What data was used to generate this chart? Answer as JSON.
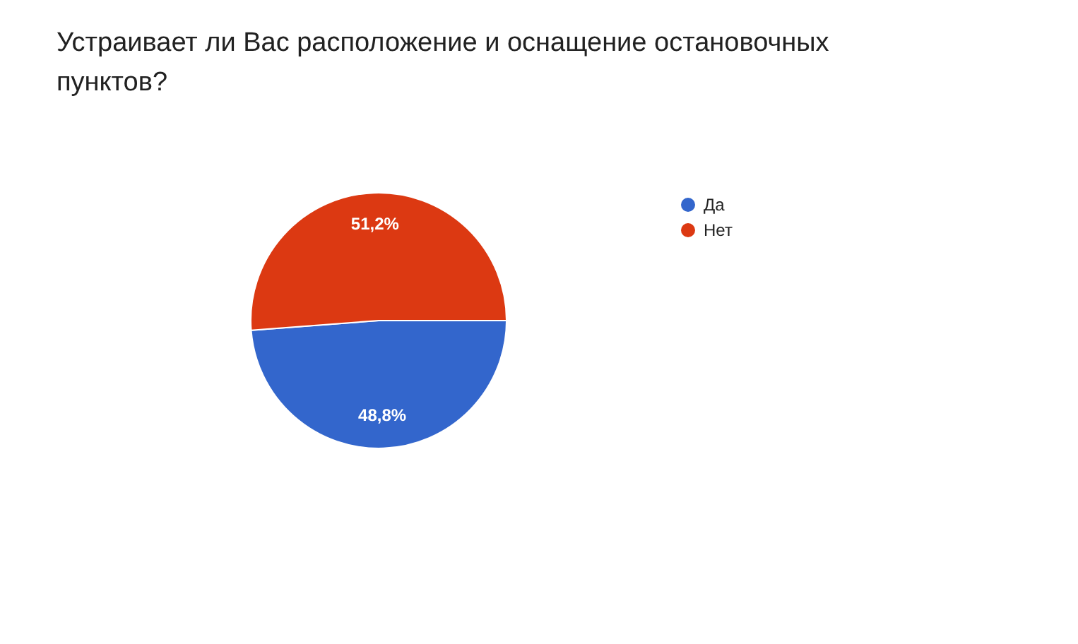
{
  "chart_data": {
    "type": "pie",
    "title": "Устраивает ли Вас расположение и оснащение остановочных пунктов?",
    "categories": [
      "Да",
      "Нет"
    ],
    "values": [
      48.8,
      51.2
    ],
    "colors": [
      "#3366cc",
      "#dc3912"
    ],
    "value_labels": [
      "48,8%",
      "51,2%"
    ],
    "legend": "right"
  }
}
